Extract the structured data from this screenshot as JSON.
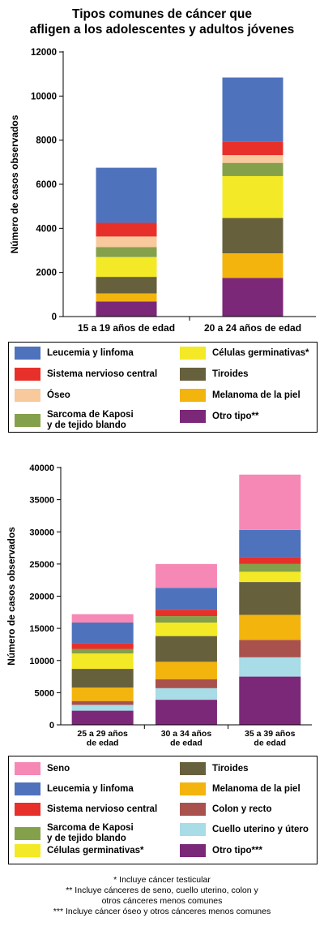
{
  "title_lines": [
    "Tipos comunes de cáncer que",
    "afligen a los adolescentes y adultos jóvenes"
  ],
  "colors": {
    "leucemia": "#4f72bd",
    "snc": "#e8302a",
    "oseo": "#f8c99d",
    "sarcoma": "#85a04b",
    "germinal": "#f4e926",
    "tiroides": "#67603d",
    "melanoma": "#f3b40d",
    "otro": "#7b2878",
    "seno": "#f688b5",
    "colon": "#a9514d",
    "cuello": "#a8dce6"
  },
  "chart_data": [
    {
      "type": "bar",
      "stacked": true,
      "ylabel": "Número de casos observados",
      "ylim": [
        0,
        12000
      ],
      "yticks": [
        "0",
        "2000",
        "4000",
        "6000",
        "8000",
        "10000",
        "12000"
      ],
      "categories": [
        "15 a 19 años de edad",
        "20 a 24 años de edad"
      ],
      "series": [
        {
          "name": "Otro tipo**",
          "color_key": "otro",
          "values": [
            680,
            1750
          ]
        },
        {
          "name": "Melanoma de la piel",
          "color_key": "melanoma",
          "values": [
            370,
            1120
          ]
        },
        {
          "name": "Tiroides",
          "color_key": "tiroides",
          "values": [
            750,
            1600
          ]
        },
        {
          "name": "Células germinativas*",
          "color_key": "germinal",
          "values": [
            900,
            1900
          ]
        },
        {
          "name": "Sarcoma de Kaposi\ny de tejido blando",
          "color_key": "sarcoma",
          "values": [
            450,
            600
          ]
        },
        {
          "name": "Óseo",
          "color_key": "oseo",
          "values": [
            480,
            350
          ]
        },
        {
          "name": "Sistema nervioso central",
          "color_key": "snc",
          "values": [
            620,
            620
          ]
        },
        {
          "name": "Leucemia y linfoma",
          "color_key": "leucemia",
          "values": [
            2500,
            2900
          ]
        }
      ]
    },
    {
      "type": "bar",
      "stacked": true,
      "ylabel": "Número de casos observados",
      "ylim": [
        0,
        40000
      ],
      "yticks": [
        "0",
        "5000",
        "10000",
        "15000",
        "20000",
        "25000",
        "30000",
        "35000",
        "40000"
      ],
      "categories": [
        "25 a 29 años\nde edad",
        "30 a 34 años\nde edad",
        "35 a 39 años\nde edad"
      ],
      "series": [
        {
          "name": "Otro tipo***",
          "color_key": "otro",
          "values": [
            2200,
            3900,
            7500
          ]
        },
        {
          "name": "Cuello uterino y útero",
          "color_key": "cuello",
          "values": [
            900,
            1800,
            3000
          ]
        },
        {
          "name": "Colon y recto",
          "color_key": "colon",
          "values": [
            600,
            1400,
            2700
          ]
        },
        {
          "name": "Melanoma de la piel",
          "color_key": "melanoma",
          "values": [
            2100,
            2700,
            3900
          ]
        },
        {
          "name": "Tiroides",
          "color_key": "tiroides",
          "values": [
            2900,
            4000,
            5100
          ]
        },
        {
          "name": "Células germinativas*",
          "color_key": "germinal",
          "values": [
            2400,
            2100,
            1600
          ]
        },
        {
          "name": "Sarcoma de Kaposi\ny de tejido blando",
          "color_key": "sarcoma",
          "values": [
            700,
            1000,
            1200
          ]
        },
        {
          "name": "Sistema nervioso central",
          "color_key": "snc",
          "values": [
            900,
            1000,
            1100
          ]
        },
        {
          "name": "Leucemia y linfoma",
          "color_key": "leucemia",
          "values": [
            3200,
            3400,
            4200
          ]
        },
        {
          "name": "Seno",
          "color_key": "seno",
          "values": [
            1300,
            3700,
            8600
          ]
        }
      ]
    }
  ],
  "legend1": [
    {
      "label": "Leucemia y linfoma",
      "color_key": "leucemia"
    },
    {
      "label": "Células germinativas*",
      "color_key": "germinal"
    },
    {
      "label": "Sistema nervioso central",
      "color_key": "snc"
    },
    {
      "label": "Tiroides",
      "color_key": "tiroides"
    },
    {
      "label": "Óseo",
      "color_key": "oseo"
    },
    {
      "label": "Melanoma de la piel",
      "color_key": "melanoma"
    },
    {
      "label": "Sarcoma de Kaposi\ny de tejido blando",
      "color_key": "sarcoma"
    },
    {
      "label": "Otro tipo**",
      "color_key": "otro"
    }
  ],
  "legend2": [
    {
      "label": "Seno",
      "color_key": "seno"
    },
    {
      "label": "Tiroides",
      "color_key": "tiroides"
    },
    {
      "label": "Leucemia y linfoma",
      "color_key": "leucemia"
    },
    {
      "label": "Melanoma de la piel",
      "color_key": "melanoma"
    },
    {
      "label": "Sistema nervioso central",
      "color_key": "snc"
    },
    {
      "label": "Colon y recto",
      "color_key": "colon"
    },
    {
      "label": "Sarcoma de Kaposi\ny de tejido blando",
      "color_key": "sarcoma"
    },
    {
      "label": "Cuello uterino y útero",
      "color_key": "cuello"
    },
    {
      "label": "Células germinativas*",
      "color_key": "germinal"
    },
    {
      "label": "Otro tipo***",
      "color_key": "otro"
    }
  ],
  "footnotes": [
    "* Incluye cáncer testicular",
    "** Incluye cánceres de seno, cuello uterino, colon y",
    "otros cánceres menos comunes",
    "*** Incluye cáncer óseo y otros cánceres menos comunes"
  ]
}
